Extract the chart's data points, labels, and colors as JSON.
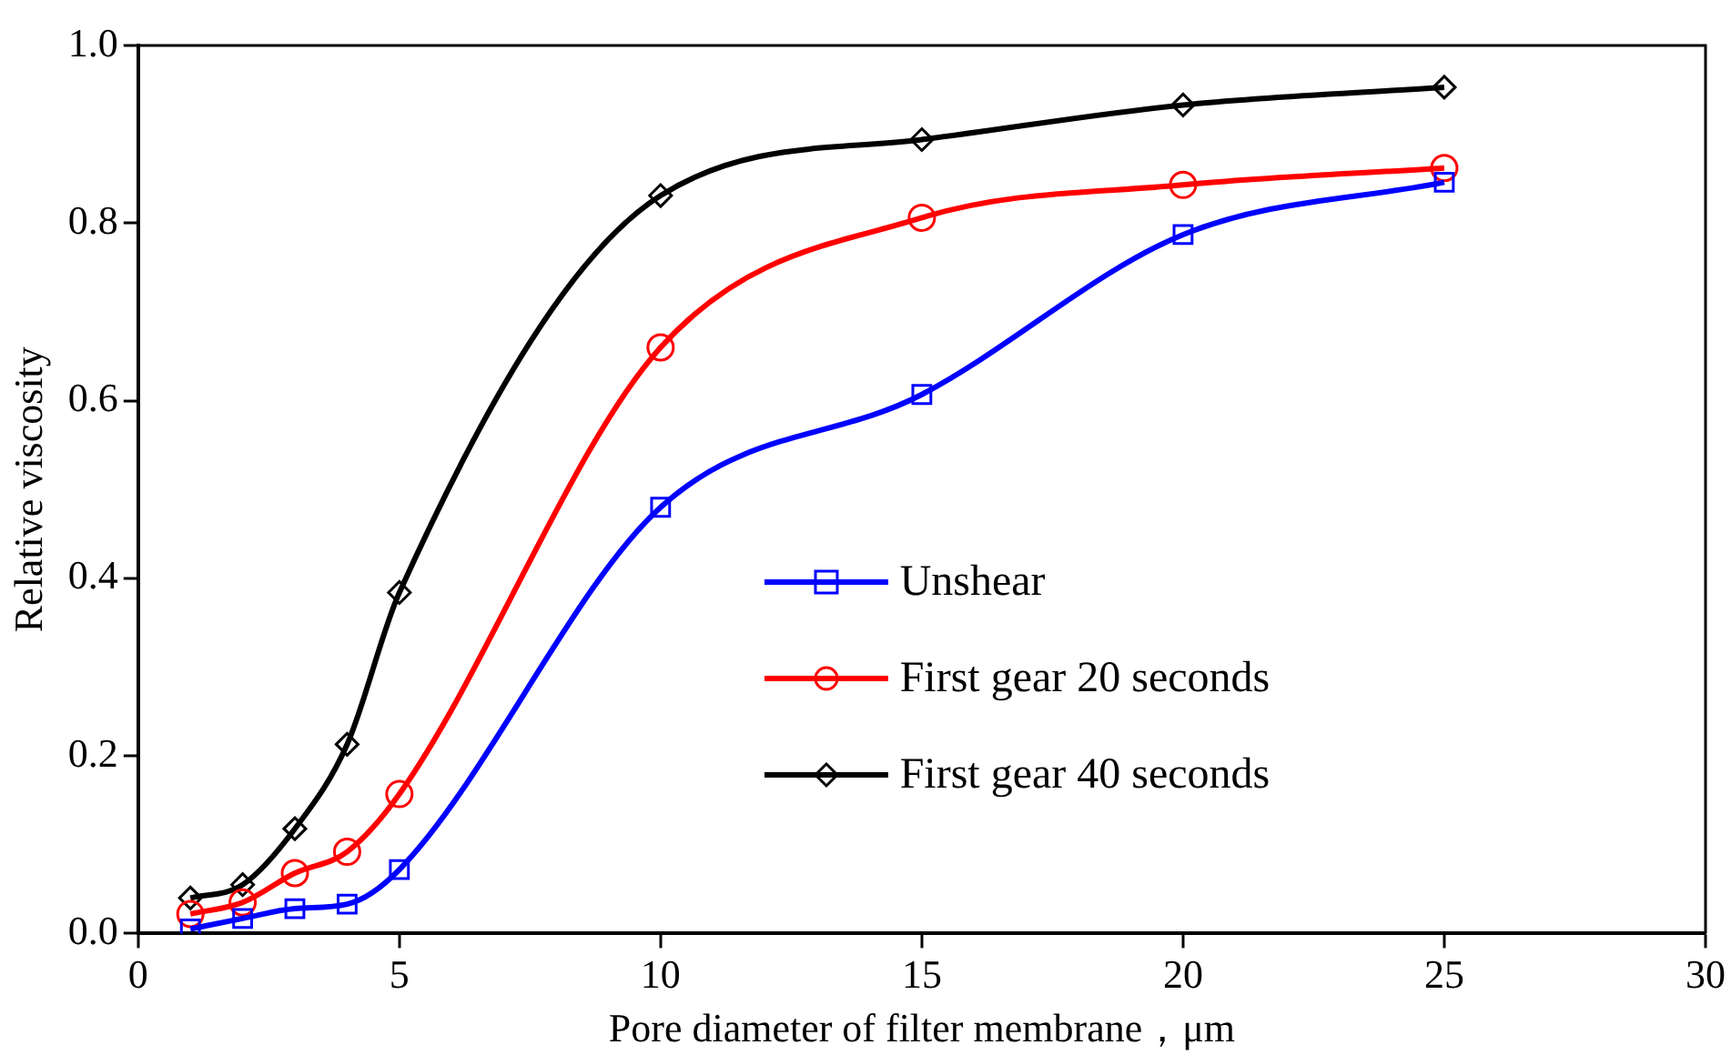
{
  "chart_data": {
    "type": "line",
    "xlabel": "Pore diameter of filter membrane，μm",
    "ylabel": "Relative viscosity",
    "x": [
      1,
      2,
      3,
      4,
      5,
      10,
      15,
      20,
      25
    ],
    "series": [
      {
        "name": "Unshear",
        "color": "#0000ff",
        "marker": "square",
        "values": [
          0.005,
          0.017,
          0.028,
          0.033,
          0.072,
          0.48,
          0.607,
          0.787,
          0.846
        ]
      },
      {
        "name": "First gear 20 seconds",
        "color": "#ff0000",
        "marker": "circle",
        "values": [
          0.022,
          0.035,
          0.068,
          0.092,
          0.157,
          0.66,
          0.806,
          0.843,
          0.862
        ]
      },
      {
        "name": "First gear 40 seconds",
        "color": "#000000",
        "marker": "diamond",
        "values": [
          0.04,
          0.055,
          0.118,
          0.213,
          0.384,
          0.831,
          0.894,
          0.933,
          0.953
        ]
      }
    ],
    "xlim": [
      0,
      30
    ],
    "xticks": [
      0,
      5,
      10,
      15,
      20,
      25,
      30
    ],
    "ylim": [
      0,
      1
    ],
    "yticks": [
      {
        "value": 0,
        "label": "0.0"
      },
      {
        "value": 0.2,
        "label": "0.2"
      },
      {
        "value": 0.4,
        "label": "0.4"
      },
      {
        "value": 0.6,
        "label": "0.6"
      },
      {
        "value": 0.8,
        "label": "0.8"
      },
      {
        "value": 1,
        "label": "1.0"
      }
    ],
    "grid": false,
    "legend": "center"
  }
}
